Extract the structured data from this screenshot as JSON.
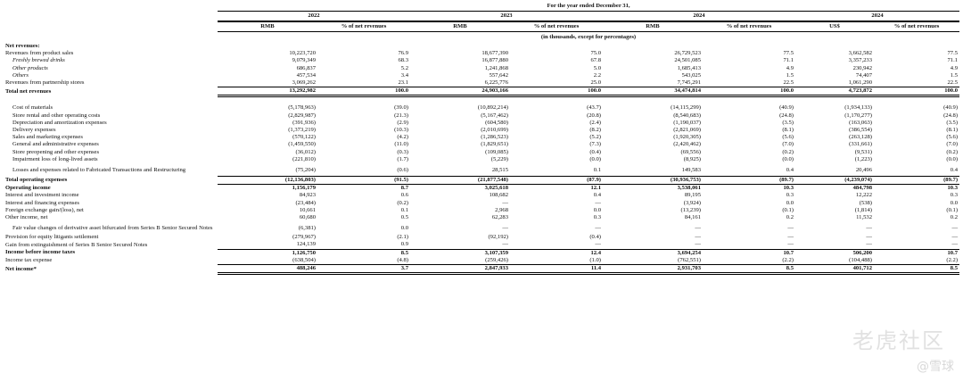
{
  "header": {
    "period": "For the year ended December 31,",
    "years": [
      "2022",
      "2023",
      "2024",
      "2024"
    ],
    "col_labels": [
      "RMB",
      "% of net revenues",
      "RMB",
      "% of net revenues",
      "RMB",
      "% of net revenues",
      "US$",
      "% of net revenues"
    ],
    "units": "(in thousands, except for percentages)"
  },
  "rows": [
    {
      "label": "Net revenues:",
      "style": "section",
      "vals": [
        "",
        "",
        "",
        "",
        "",
        "",
        "",
        ""
      ]
    },
    {
      "label": "Revenues from product sales",
      "style": "",
      "vals": [
        "10,223,720",
        "76.9",
        "18,677,390",
        "75.0",
        "26,729,523",
        "77.5",
        "3,662,582",
        "77.5"
      ]
    },
    {
      "label": "Freshly brewed drinks",
      "style": "ital",
      "vals": [
        "9,079,349",
        "68.3",
        "16,877,880",
        "67.8",
        "24,501,085",
        "71.1",
        "3,357,233",
        "71.1"
      ]
    },
    {
      "label": "Other products",
      "style": "ital",
      "vals": [
        "686,837",
        "5.2",
        "1,241,868",
        "5.0",
        "1,685,413",
        "4.9",
        "230,942",
        "4.9"
      ]
    },
    {
      "label": "Others",
      "style": "ital",
      "vals": [
        "457,534",
        "3.4",
        "557,642",
        "2.2",
        "543,025",
        "1.5",
        "74,407",
        "1.5"
      ]
    },
    {
      "label": "Revenues from partnership stores",
      "style": "line",
      "vals": [
        "3,069,262",
        "23.1",
        "6,225,776",
        "25.0",
        "7,745,291",
        "22.5",
        "1,061,290",
        "22.5"
      ]
    },
    {
      "label": "Total net revenues",
      "style": "boldd",
      "vals": [
        "13,292,982",
        "100.0",
        "24,903,166",
        "100.0",
        "34,474,814",
        "100.0",
        "4,723,872",
        "100.0"
      ]
    },
    {
      "label": "",
      "style": "sp",
      "vals": [
        "",
        "",
        "",
        "",
        "",
        "",
        "",
        ""
      ]
    },
    {
      "label": "Cost of materials",
      "style": "pad",
      "vals": [
        "(5,178,963)",
        "(39.0)",
        "(10,892,214)",
        "(43.7)",
        "(14,115,299)",
        "(40.9)",
        "(1,934,133)",
        "(40.9)"
      ]
    },
    {
      "label": "Store rental and other operating costs",
      "style": "pad",
      "vals": [
        "(2,829,987)",
        "(21.3)",
        "(5,167,462)",
        "(20.8)",
        "(8,540,683)",
        "(24.8)",
        "(1,170,277)",
        "(24.8)"
      ]
    },
    {
      "label": "Depreciation and amortization expenses",
      "style": "pad",
      "vals": [
        "(391,936)",
        "(2.9)",
        "(604,580)",
        "(2.4)",
        "(1,190,037)",
        "(3.5)",
        "(163,063)",
        "(3.5)"
      ]
    },
    {
      "label": "Delivery expenses",
      "style": "pad",
      "vals": [
        "(1,373,219)",
        "(10.3)",
        "(2,010,699)",
        "(8.2)",
        "(2,821,069)",
        "(8.1)",
        "(386,554)",
        "(8.1)"
      ]
    },
    {
      "label": "Sales and marketing expenses",
      "style": "pad",
      "vals": [
        "(570,122)",
        "(4.2)",
        "(1,286,523)",
        "(5.2)",
        "(1,920,305)",
        "(5.6)",
        "(263,128)",
        "(5.6)"
      ]
    },
    {
      "label": "General and administrative expenses",
      "style": "pad",
      "vals": [
        "(1,459,550)",
        "(11.0)",
        "(1,829,651)",
        "(7.3)",
        "(2,420,462)",
        "(7.0)",
        "(331,661)",
        "(7.0)"
      ]
    },
    {
      "label": "Store preopening and other expenses",
      "style": "pad",
      "vals": [
        "(36,012)",
        "(0.3)",
        "(109,085)",
        "(0.4)",
        "(69,556)",
        "(0.2)",
        "(9,531)",
        "(0.2)"
      ]
    },
    {
      "label": "Impairment loss of long-lived assets",
      "style": "pad",
      "vals": [
        "(221,810)",
        "(1.7)",
        "(5,229)",
        "(0.0)",
        "(8,925)",
        "(0.0)",
        "(1,223)",
        "(0.0)"
      ]
    },
    {
      "label": "Losses and expenses related to Fabricated Transactions and Restructuring",
      "style": "tallline",
      "vals": [
        "(75,204)",
        "(0.6)",
        "28,515",
        "0.1",
        "149,583",
        "0.4",
        "20,496",
        "0.4"
      ]
    },
    {
      "label": "Total operating expenses",
      "style": "boldline",
      "vals": [
        "(12,136,803)",
        "(91.5)",
        "(21,877,548)",
        "(87.9)",
        "(30,936,753)",
        "(89.7)",
        "(4,239,074)",
        "(89.7)"
      ]
    },
    {
      "label": "Operating income",
      "style": "bold",
      "vals": [
        "1,156,179",
        "8.7",
        "3,025,618",
        "12.1",
        "3,538,061",
        "10.3",
        "484,798",
        "10.3"
      ]
    },
    {
      "label": "Interest and investment income",
      "style": "",
      "vals": [
        "84,923",
        "0.6",
        "108,682",
        "0.4",
        "89,195",
        "0.3",
        "12,222",
        "0.3"
      ]
    },
    {
      "label": "Interest and financing expenses",
      "style": "",
      "vals": [
        "(23,484)",
        "(0.2)",
        "—",
        "—",
        "(3,924)",
        "0.0",
        "(538)",
        "0.0"
      ]
    },
    {
      "label": "Foreign exchange gain/(loss), net",
      "style": "",
      "vals": [
        "10,661",
        "0.1",
        "2,968",
        "0.0",
        "(13,239)",
        "(0.1)",
        "(1,814)",
        "(0.1)"
      ]
    },
    {
      "label": "Other income, net",
      "style": "",
      "vals": [
        "60,680",
        "0.5",
        "62,283",
        "0.3",
        "84,161",
        "0.2",
        "11,532",
        "0.2"
      ]
    },
    {
      "label": "Fair value changes of derivative asset bifurcated from Series B Senior Secured Notes",
      "style": "tall",
      "vals": [
        "(6,381)",
        "0.0",
        "—",
        "—",
        "—",
        "—",
        "—",
        "—"
      ]
    },
    {
      "label": "Provision for equity litigants settlement",
      "style": "",
      "vals": [
        "(279,967)",
        "(2.1)",
        "(92,192)",
        "(0.4)",
        "—",
        "—",
        "—",
        "—"
      ]
    },
    {
      "label": "Gain from extinguishment of Series B Senior Secured Notes",
      "style": "line",
      "vals": [
        "124,139",
        "0.9",
        "—",
        "—",
        "—",
        "—",
        "—",
        "—"
      ]
    },
    {
      "label": "Income before income taxes",
      "style": "bold",
      "vals": [
        "1,126,750",
        "8.5",
        "3,107,359",
        "12.4",
        "3,694,254",
        "10.7",
        "506,200",
        "10.7"
      ]
    },
    {
      "label": "Income tax expense",
      "style": "line",
      "vals": [
        "(638,504)",
        "(4.8)",
        "(259,426)",
        "(1.0)",
        "(762,551)",
        "(2.2)",
        "(104,488)",
        "(2.2)"
      ]
    },
    {
      "label": "Net income*",
      "style": "boldd",
      "vals": [
        "488,246",
        "3.7",
        "2,847,933",
        "11.4",
        "2,931,703",
        "8.5",
        "401,712",
        "8.5"
      ]
    }
  ],
  "watermark": {
    "text": "老虎社区",
    "sub": "@雪球"
  }
}
